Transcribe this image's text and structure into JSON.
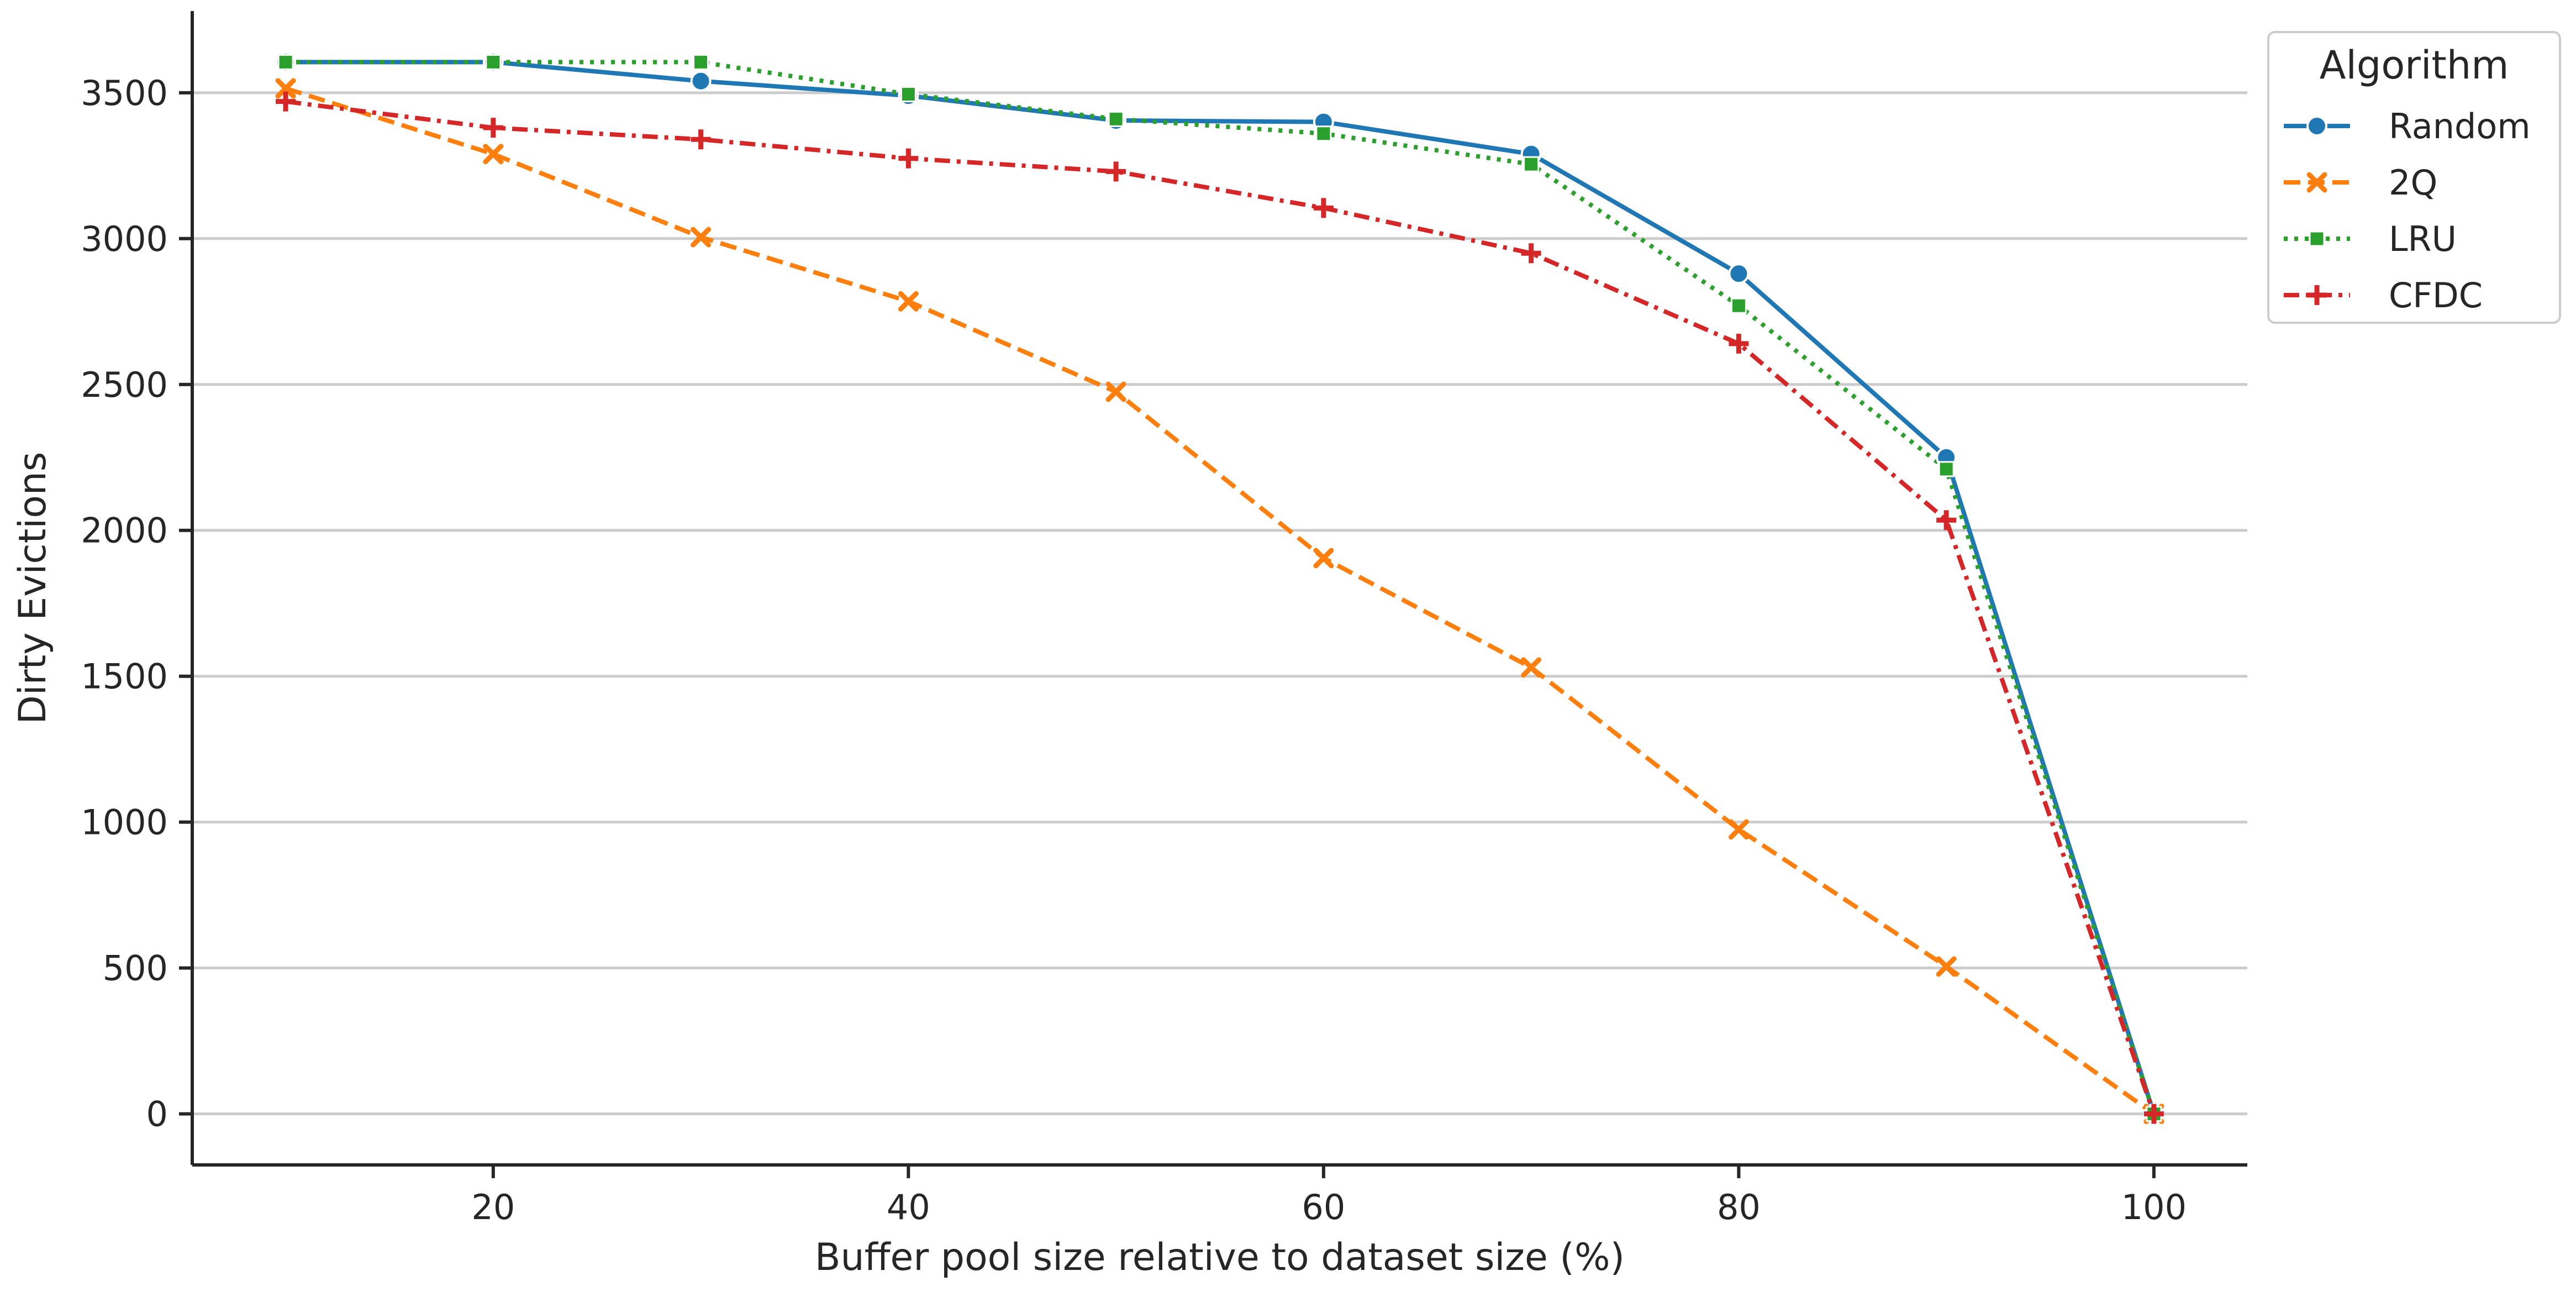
{
  "chart_data": {
    "type": "line",
    "title": "",
    "xlabel": "Buffer pool size relative to dataset size (%)",
    "ylabel": "Dirty Evictions",
    "x": [
      10,
      20,
      30,
      40,
      50,
      60,
      70,
      80,
      90,
      100
    ],
    "xlim": [
      5.5,
      104.5
    ],
    "ylim": [
      -175,
      3780
    ],
    "xticks": [
      20,
      40,
      60,
      80,
      100
    ],
    "yticks": [
      0,
      500,
      1000,
      1500,
      2000,
      2500,
      3000,
      3500
    ],
    "grid": "horizontal",
    "legend": {
      "title": "Algorithm",
      "placement": "top-right-outside"
    },
    "series": [
      {
        "name": "Random",
        "color": "#1f77b4",
        "dash": "solid",
        "marker": "circle",
        "values": [
          3605,
          3605,
          3540,
          3490,
          3405,
          3400,
          3290,
          2880,
          2250,
          0
        ]
      },
      {
        "name": "2Q",
        "color": "#ff7f0e",
        "dash": "dashed",
        "marker": "x",
        "values": [
          3515,
          3290,
          3005,
          2785,
          2475,
          1905,
          1530,
          975,
          505,
          0
        ]
      },
      {
        "name": "LRU",
        "color": "#2ca02c",
        "dash": "dotted",
        "marker": "square",
        "values": [
          3605,
          3605,
          3605,
          3495,
          3410,
          3360,
          3255,
          2770,
          2210,
          0
        ]
      },
      {
        "name": "CFDC",
        "color": "#d62728",
        "dash": "dashdot",
        "marker": "plus",
        "values": [
          3470,
          3380,
          3340,
          3275,
          3230,
          3105,
          2950,
          2640,
          2035,
          0
        ]
      }
    ]
  }
}
